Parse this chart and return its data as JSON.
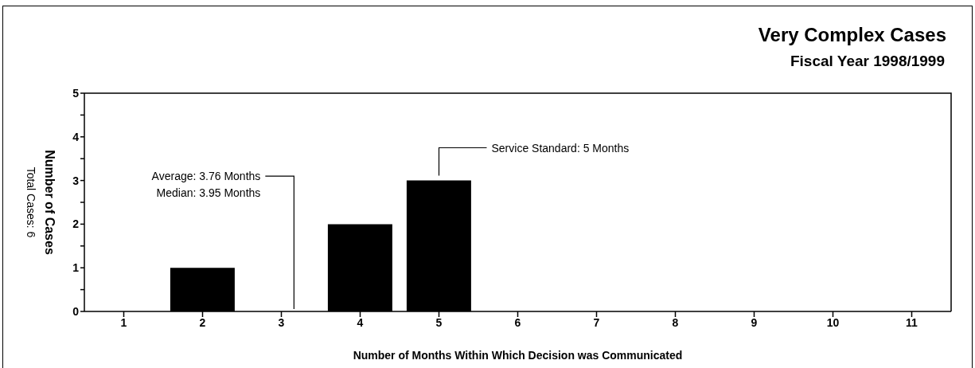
{
  "chart_data": {
    "type": "bar",
    "title": "Very Complex Cases",
    "subtitle": "Fiscal Year 1998/1999",
    "xlabel": "Number of Months Within Which Decision was Communicated",
    "ylabel": "Number of Cases",
    "categories": [
      "1",
      "2",
      "3",
      "4",
      "5",
      "6",
      "7",
      "8",
      "9",
      "10",
      "11"
    ],
    "values": [
      0,
      1,
      0,
      2,
      3,
      0,
      0,
      0,
      0,
      0,
      0
    ],
    "color": "#000000",
    "ylim": [
      0,
      5
    ],
    "yticks": [
      0,
      {
        "value": 0.5,
        "label": null
      },
      1,
      {
        "value": 1.5,
        "label": null
      },
      2,
      {
        "value": 2.5,
        "label": null
      },
      3,
      {
        "value": 3.5,
        "label": null
      },
      4,
      {
        "value": 4.5,
        "label": null
      },
      5
    ],
    "annotations": [
      "Total Cases: 6",
      "Average: 3.76 Months",
      "Median: 3.95 Months",
      {
        "text": "Service Standard: 5 Months",
        "x": "5",
        "y": 3
      }
    ],
    "relative": false
  }
}
